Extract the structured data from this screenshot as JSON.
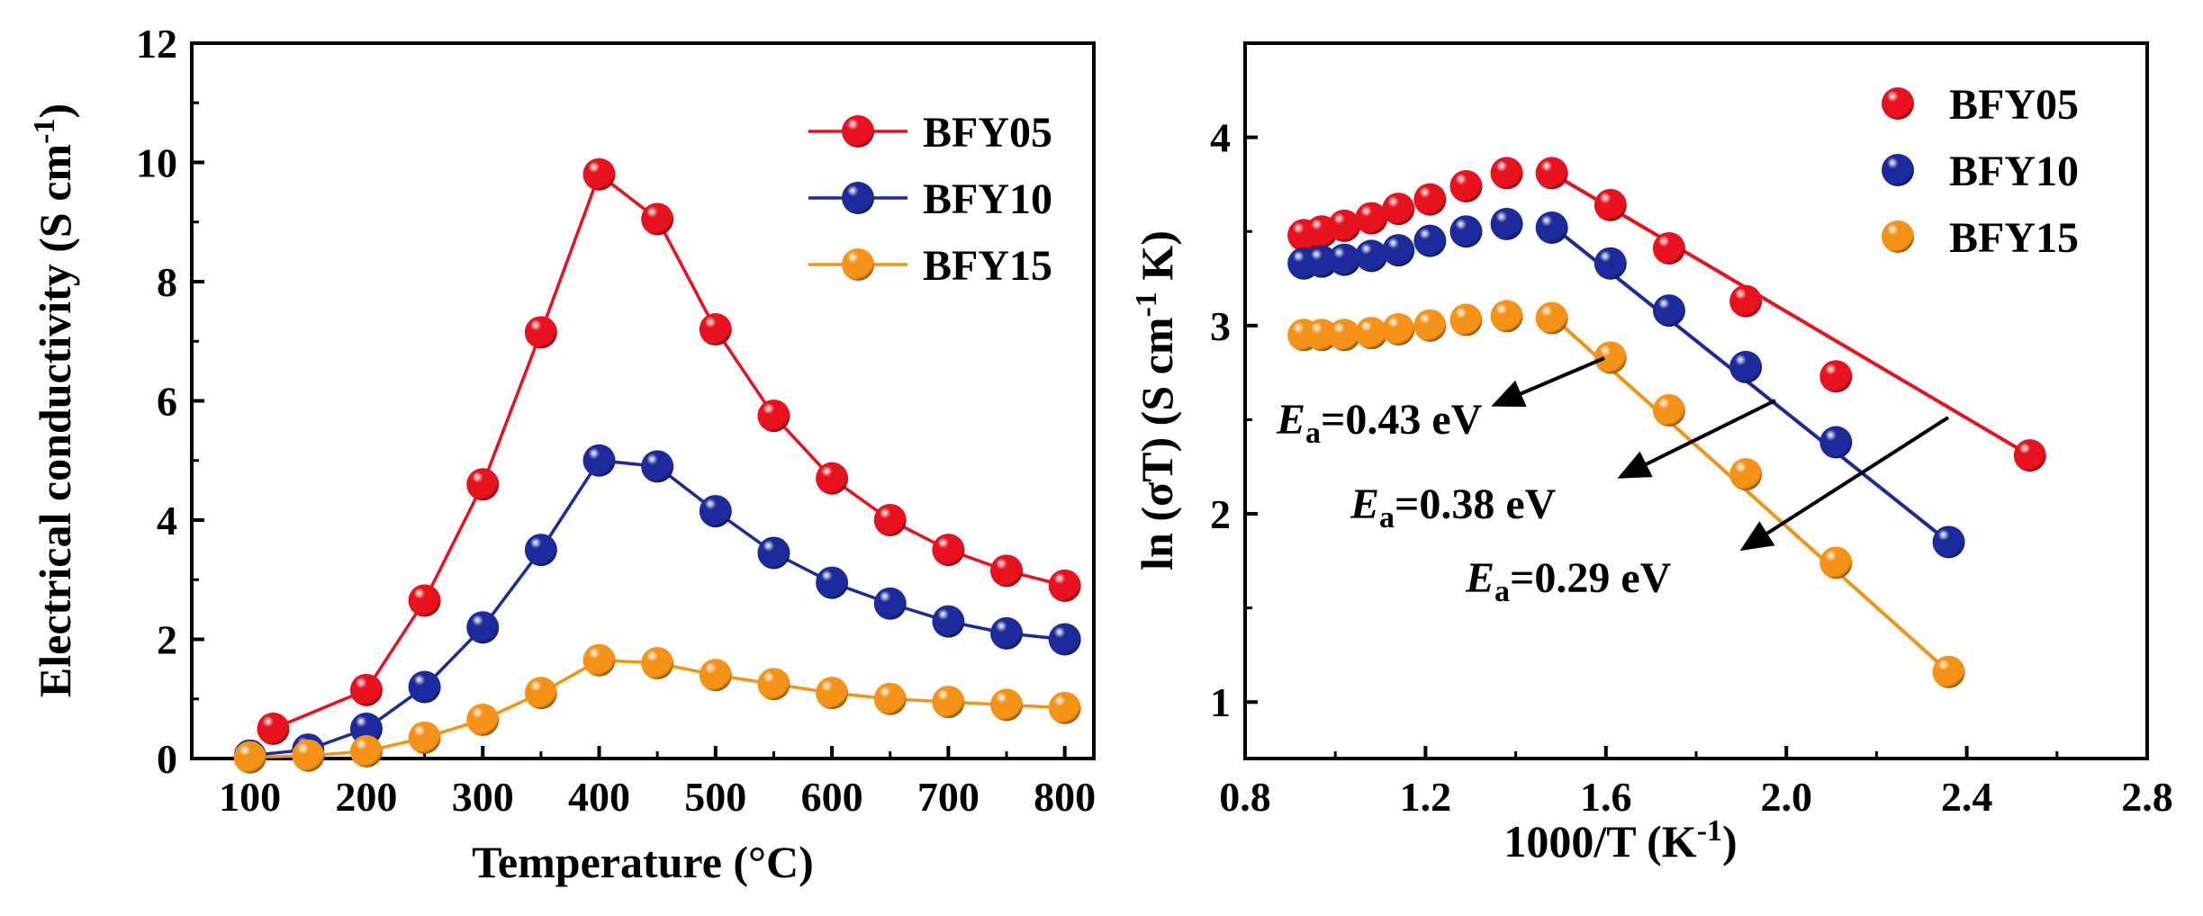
{
  "chart_data": [
    {
      "type": "line",
      "xlabel": "Temperature (°C)",
      "ylabel": "Electrical conductivity (S cm-1)",
      "ylabel_main": "Electrical conductivity (S cm",
      "ylabel_sup": "-1",
      "ylabel_close": ")",
      "xlim": [
        50,
        825
      ],
      "ylim": [
        0,
        12
      ],
      "xticks": [
        "100",
        "200",
        "300",
        "400",
        "500",
        "600",
        "700",
        "800"
      ],
      "yticks": [
        "0",
        "2",
        "4",
        "6",
        "8",
        "10",
        "12"
      ],
      "legend_position": "top-right",
      "series": [
        {
          "name": "BFY05",
          "color": "#e8111e",
          "x": [
            120,
            200,
            250,
            300,
            350,
            400,
            450,
            500,
            550,
            600,
            650,
            700,
            750,
            800
          ],
          "y": [
            0.5,
            1.15,
            2.65,
            4.6,
            7.15,
            9.8,
            9.05,
            7.2,
            5.75,
            4.7,
            4.0,
            3.5,
            3.15,
            2.9
          ]
        },
        {
          "name": "BFY10",
          "color": "#1c2a9c",
          "x": [
            100,
            150,
            200,
            250,
            300,
            350,
            400,
            450,
            500,
            550,
            600,
            650,
            700,
            750,
            800
          ],
          "y": [
            0.05,
            0.15,
            0.5,
            1.2,
            2.2,
            3.5,
            5.0,
            4.9,
            4.15,
            3.45,
            2.95,
            2.6,
            2.3,
            2.1,
            2.0
          ]
        },
        {
          "name": "BFY15",
          "color": "#f59218",
          "x": [
            100,
            150,
            200,
            250,
            300,
            350,
            400,
            450,
            500,
            550,
            600,
            650,
            700,
            750,
            800
          ],
          "y": [
            0.02,
            0.05,
            0.12,
            0.35,
            0.65,
            1.1,
            1.65,
            1.6,
            1.4,
            1.25,
            1.1,
            1.0,
            0.95,
            0.9,
            0.85
          ]
        }
      ]
    },
    {
      "type": "scatter",
      "xlabel": "1000/T (K-1)",
      "xlabel_main": "1000/T (K",
      "xlabel_sup": "-1",
      "xlabel_close": ")",
      "ylabel": "ln (σT) (S cm-1 K)",
      "ylabel_main": "ln (σT) (S cm",
      "ylabel_sup": "-1",
      "ylabel_close": " K)",
      "xlim": [
        0.8,
        2.8
      ],
      "ylim": [
        0.7,
        4.5
      ],
      "xticks": [
        "0.8",
        "1.2",
        "1.6",
        "2.0",
        "2.4",
        "2.8"
      ],
      "yticks": [
        "1",
        "2",
        "3",
        "4"
      ],
      "legend_position": "top-right",
      "series": [
        {
          "name": "BFY05",
          "color": "#e8111e",
          "x": [
            0.93,
            0.97,
            1.02,
            1.08,
            1.14,
            1.21,
            1.29,
            1.38,
            1.48,
            1.61,
            1.74,
            1.91,
            2.11,
            2.54
          ],
          "y": [
            3.48,
            3.5,
            3.53,
            3.57,
            3.62,
            3.67,
            3.74,
            3.81,
            3.81,
            3.64,
            3.41,
            3.13,
            2.73,
            2.31
          ],
          "fit": {
            "x": [
              1.48,
              2.54
            ],
            "y": [
              3.81,
              2.31
            ]
          }
        },
        {
          "name": "BFY10",
          "color": "#1c2a9c",
          "x": [
            0.93,
            0.97,
            1.02,
            1.08,
            1.14,
            1.21,
            1.29,
            1.38,
            1.48,
            1.61,
            1.74,
            1.91,
            2.11,
            2.36
          ],
          "y": [
            3.33,
            3.34,
            3.35,
            3.37,
            3.4,
            3.45,
            3.5,
            3.54,
            3.52,
            3.33,
            3.08,
            2.78,
            2.38,
            1.85
          ],
          "fit": {
            "x": [
              1.48,
              2.36
            ],
            "y": [
              3.53,
              1.85
            ]
          }
        },
        {
          "name": "BFY15",
          "color": "#f59218",
          "x": [
            0.93,
            0.97,
            1.02,
            1.08,
            1.14,
            1.21,
            1.29,
            1.38,
            1.48,
            1.61,
            1.74,
            1.91,
            2.11,
            2.36
          ],
          "y": [
            2.95,
            2.95,
            2.95,
            2.96,
            2.98,
            3.0,
            3.03,
            3.05,
            3.04,
            2.83,
            2.55,
            2.21,
            1.74,
            1.16
          ],
          "fit": {
            "x": [
              1.48,
              2.36
            ],
            "y": [
              3.05,
              1.16
            ]
          }
        }
      ],
      "annotations": [
        {
          "symbol": "E",
          "sub": "a",
          "value": "=0.43 eV"
        },
        {
          "symbol": "E",
          "sub": "a",
          "value": "=0.38 eV"
        },
        {
          "symbol": "E",
          "sub": "a",
          "value": "=0.29 eV"
        }
      ]
    }
  ]
}
